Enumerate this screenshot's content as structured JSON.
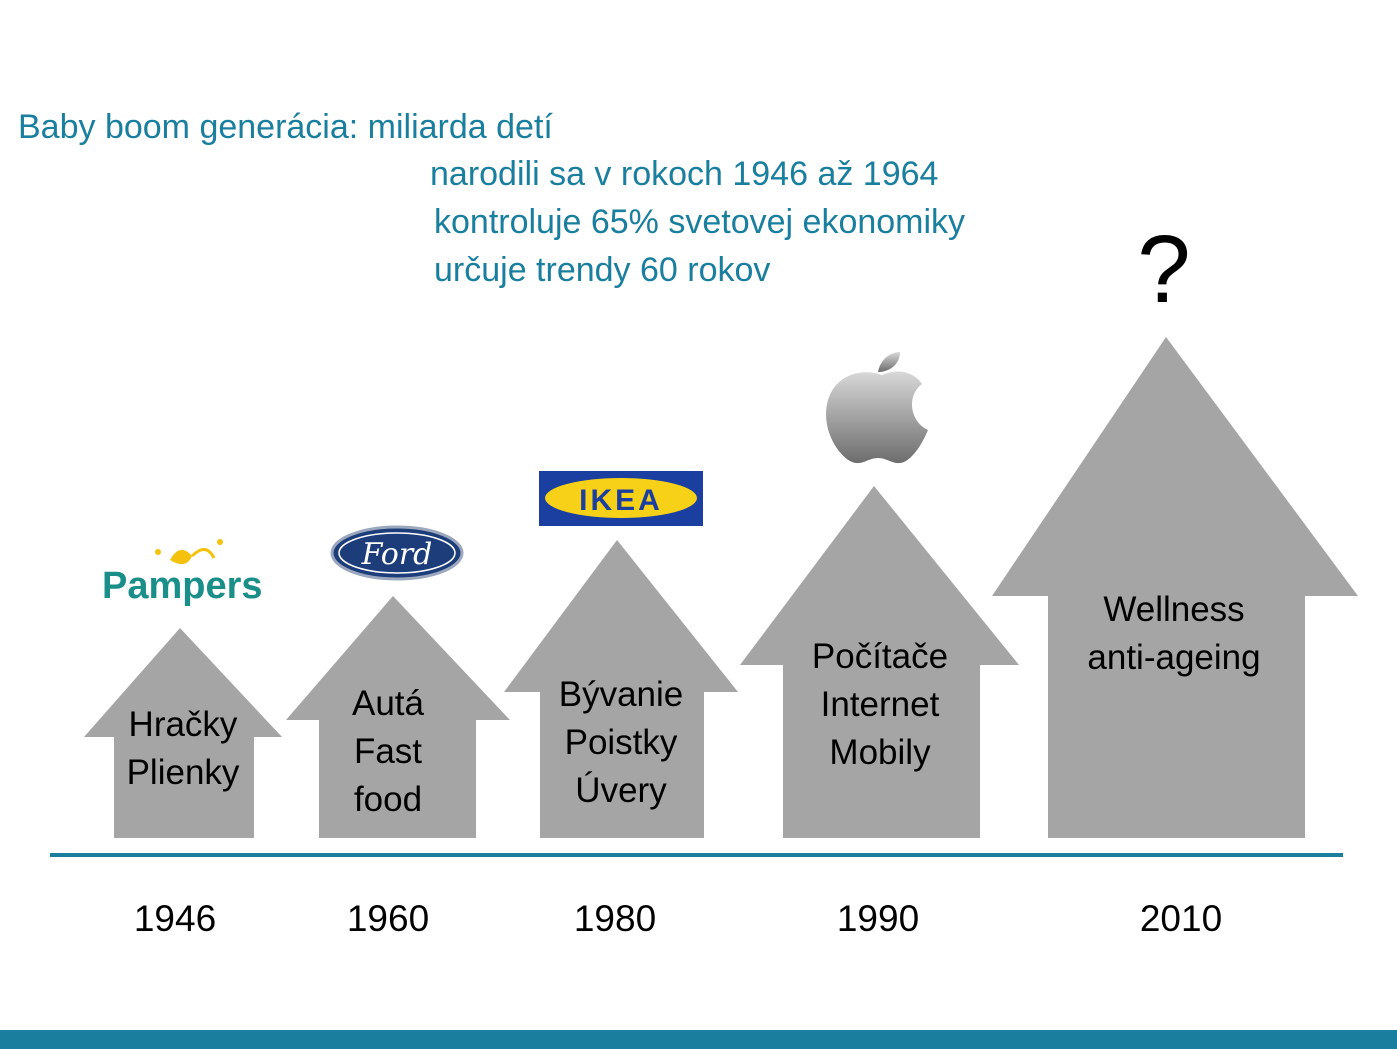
{
  "heading": {
    "line1": "Baby boom generácia: miliarda detí",
    "line2": "narodili sa v rokoch 1946 až 1964",
    "line3": "kontroluje 65% svetovej ekonomiky",
    "line4": "určuje trendy 60 rokov"
  },
  "houses": [
    {
      "year": "1946",
      "lines": [
        "Hračky",
        "Plienky"
      ],
      "logo": "Pampers"
    },
    {
      "year": "1960",
      "lines": [
        "Autá",
        "Fast",
        "food"
      ],
      "logo": "Ford"
    },
    {
      "year": "1980",
      "lines": [
        "Bývanie",
        "Poistky",
        "Úvery"
      ],
      "logo": "IKEA"
    },
    {
      "year": "1990",
      "lines": [
        "Počítače",
        "Internet",
        "Mobily"
      ],
      "logo": "apple-logo"
    },
    {
      "year": "2010",
      "lines": [
        "Wellness",
        "anti-ageing"
      ],
      "logo": "?"
    }
  ],
  "colors": {
    "accent": "#1a7f9e",
    "house": "#a5a5a5"
  }
}
